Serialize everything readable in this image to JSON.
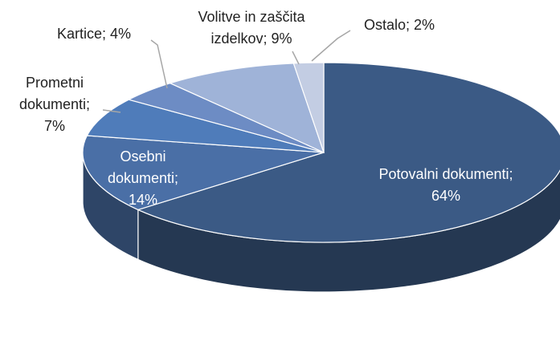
{
  "chart_data": {
    "type": "pie3d",
    "values": [
      64,
      14,
      7,
      4,
      9,
      2
    ],
    "value_labels": [
      [
        "Potovalni dokumenti;",
        "64%"
      ],
      [
        "Osebni",
        "dokumenti;",
        "14%"
      ],
      [
        "Prometni",
        "dokumenti;",
        "7%"
      ],
      [
        "Kartice; 4%"
      ],
      [
        "Volitve in zaščita",
        "izdelkov; 9%"
      ],
      [
        "Ostalo; 2%"
      ]
    ],
    "colors": [
      "#3b5a85",
      "#4a6fa6",
      "#4f7cba",
      "#6d8cc4",
      "#9fb3d8",
      "#c3cde3"
    ]
  }
}
